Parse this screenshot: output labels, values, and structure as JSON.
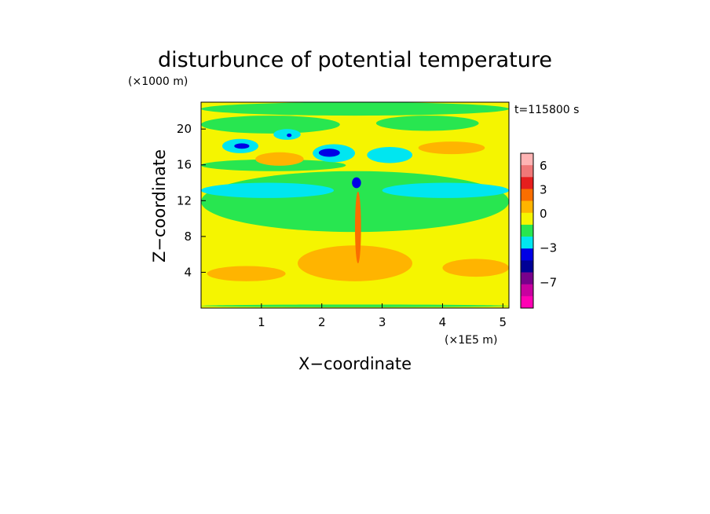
{
  "chart_data": {
    "type": "heatmap",
    "title": "disturbunce of potential temperature",
    "z_unit_label": "(×1000 m)",
    "x_unit_label": "(×1E5 m)",
    "time_label": "t=115800 s",
    "xlabel": "X−coordinate",
    "ylabel": "Z−coordinate",
    "xlim": [
      0,
      5.1
    ],
    "ylim": [
      0,
      23
    ],
    "x_ticks": [
      1,
      2,
      3,
      4,
      5
    ],
    "y_ticks": [
      4,
      8,
      12,
      16,
      20
    ],
    "colorbar": {
      "levels": [
        {
          "color": "#ffb4b4"
        },
        {
          "color": "#f07878"
        },
        {
          "color": "#e61e1e"
        },
        {
          "color": "#fa6e00"
        },
        {
          "color": "#ffb400"
        },
        {
          "color": "#f5f500"
        },
        {
          "color": "#28e650"
        },
        {
          "color": "#00e6f0"
        },
        {
          "color": "#0000e6"
        },
        {
          "color": "#000096"
        },
        {
          "color": "#78008c"
        },
        {
          "color": "#c800a0"
        },
        {
          "color": "#ff00b4"
        }
      ],
      "tick_labels": [
        "6",
        "3",
        "0",
        "−3",
        "−7"
      ]
    },
    "background_color": "#f5f500",
    "regions": [
      {
        "value": "negative",
        "color": "#28e650",
        "x": [
          0,
          5.1
        ],
        "y": [
          21.5,
          23
        ]
      },
      {
        "value": "negative",
        "color": "#28e650",
        "x": [
          0,
          2.3
        ],
        "y": [
          19.5,
          21.5
        ]
      },
      {
        "value": "negative",
        "color": "#28e650",
        "x": [
          2.9,
          4.6
        ],
        "y": [
          19.8,
          21.5
        ]
      },
      {
        "value": "negative",
        "color": "#28e650",
        "x": [
          0,
          5.1
        ],
        "y": [
          8.5,
          15.3
        ]
      },
      {
        "value": "negative",
        "color": "#28e650",
        "x": [
          0,
          2.4
        ],
        "y": [
          15.3,
          16.6
        ]
      },
      {
        "value": "negative",
        "color": "#28e650",
        "x": [
          0,
          5.1
        ],
        "y": [
          0.1,
          0.4
        ]
      },
      {
        "value": "negative",
        "color": "#00e6f0",
        "x": [
          0,
          2.2
        ],
        "y": [
          12.3,
          14.0
        ]
      },
      {
        "value": "negative",
        "color": "#00e6f0",
        "x": [
          3.0,
          5.1
        ],
        "y": [
          12.3,
          14.0
        ]
      },
      {
        "value": "negative",
        "color": "#00e6f0",
        "x": [
          1.85,
          2.55
        ],
        "y": [
          16.3,
          18.3
        ]
      },
      {
        "value": "negative",
        "color": "#00e6f0",
        "x": [
          2.75,
          3.5
        ],
        "y": [
          16.2,
          18.0
        ]
      },
      {
        "value": "negative",
        "color": "#00e6f0",
        "x": [
          0.35,
          0.95
        ],
        "y": [
          17.3,
          18.9
        ]
      },
      {
        "value": "negative",
        "color": "#00e6f0",
        "x": [
          1.2,
          1.65
        ],
        "y": [
          18.8,
          20.0
        ]
      },
      {
        "value": "negative",
        "color": "#0000e6",
        "x": [
          1.95,
          2.3
        ],
        "y": [
          16.9,
          17.8
        ]
      },
      {
        "value": "negative",
        "color": "#0000e6",
        "x": [
          0.55,
          0.8
        ],
        "y": [
          17.8,
          18.4
        ]
      },
      {
        "value": "negative",
        "color": "#0000e6",
        "x": [
          1.42,
          1.5
        ],
        "y": [
          19.1,
          19.5
        ]
      },
      {
        "value": "negative",
        "color": "#0000e6",
        "x": [
          2.5,
          2.65
        ],
        "y": [
          13.4,
          14.6
        ]
      },
      {
        "value": "positive",
        "color": "#ffb400",
        "x": [
          3.6,
          4.7
        ],
        "y": [
          17.2,
          18.6
        ]
      },
      {
        "value": "positive",
        "color": "#ffb400",
        "x": [
          0.9,
          1.7
        ],
        "y": [
          15.9,
          17.4
        ]
      },
      {
        "value": "positive",
        "color": "#ffb400",
        "x": [
          1.6,
          3.5
        ],
        "y": [
          3.0,
          7.0
        ]
      },
      {
        "value": "positive",
        "color": "#ffb400",
        "x": [
          0.1,
          1.4
        ],
        "y": [
          3.0,
          4.7
        ]
      },
      {
        "value": "positive",
        "color": "#ffb400",
        "x": [
          4.0,
          5.1
        ],
        "y": [
          3.5,
          5.5
        ]
      },
      {
        "value": "positive",
        "color": "#fa6e00",
        "x": [
          2.55,
          2.65
        ],
        "y": [
          5.0,
          13.0
        ]
      }
    ]
  }
}
